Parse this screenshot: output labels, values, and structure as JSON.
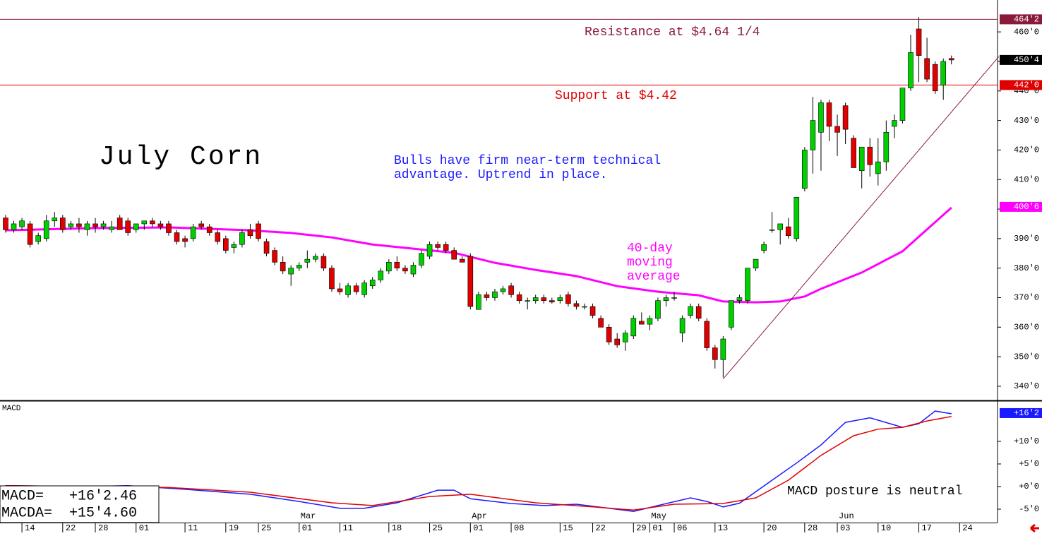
{
  "chart_data": {
    "type": "candlestick",
    "title": "July Corn",
    "up_color": "#00d000",
    "down_color": "#e00000",
    "xlim": [
      -0.69,
      121.65
    ],
    "ylim": [
      335.2,
      470.8
    ],
    "open": [
      397,
      393,
      394,
      395,
      389,
      390,
      396,
      397,
      394,
      395,
      393,
      395,
      394,
      393,
      397,
      396,
      393,
      395,
      396,
      395,
      395,
      392,
      390,
      390,
      395,
      394,
      392,
      390,
      387,
      388,
      393,
      395,
      389,
      386,
      382,
      378,
      380,
      382,
      383,
      384,
      380,
      373,
      371,
      374,
      371,
      374,
      376,
      379,
      382,
      380,
      378,
      381,
      384,
      388,
      388,
      386,
      383,
      384,
      366,
      371,
      370,
      372,
      374,
      371,
      369,
      369,
      370,
      369,
      369,
      371,
      368,
      367,
      367,
      363,
      360,
      356,
      355,
      357,
      362,
      361,
      363,
      369,
      370,
      358,
      364,
      367,
      362,
      353,
      349,
      360,
      369,
      369,
      380,
      386,
      393,
      393,
      394,
      390,
      407,
      420,
      426,
      436,
      428,
      435,
      424,
      413,
      421,
      412,
      416,
      428,
      430,
      441,
      461,
      451,
      449,
      442,
      451
    ],
    "high": [
      398,
      396,
      397,
      396,
      392,
      398,
      399,
      398,
      396,
      397,
      396,
      397,
      396,
      396,
      398,
      397,
      395,
      396,
      397,
      396,
      396,
      393,
      391,
      395,
      396,
      395,
      393,
      391,
      389,
      393,
      395,
      396,
      390,
      387,
      384,
      381,
      382,
      386,
      385,
      385,
      381,
      375,
      375,
      375,
      376,
      377,
      380,
      383,
      384,
      381,
      382,
      386,
      389,
      389,
      389,
      387,
      384,
      385,
      372,
      372,
      373,
      374,
      375,
      372,
      370,
      371,
      371,
      370,
      371,
      372,
      369,
      368,
      368,
      364,
      361,
      358,
      359,
      364,
      365,
      364,
      370,
      371,
      372,
      364,
      368,
      368,
      363,
      354,
      357,
      369,
      371,
      380,
      383,
      389,
      399,
      395,
      397,
      404,
      421,
      438,
      437,
      437,
      432,
      436,
      425,
      421,
      424,
      424,
      430,
      432,
      441,
      459,
      465,
      458,
      450,
      451,
      452
    ],
    "low": [
      392,
      392,
      393,
      387,
      388,
      389,
      394,
      392,
      393,
      392,
      391,
      392,
      393,
      392,
      393,
      391,
      392,
      393,
      394,
      393,
      391,
      388,
      387,
      389,
      393,
      391,
      388,
      385,
      385,
      387,
      390,
      389,
      384,
      381,
      378,
      374,
      379,
      380,
      382,
      379,
      372,
      371,
      370,
      371,
      370,
      373,
      375,
      378,
      379,
      378,
      377,
      380,
      383,
      386,
      385,
      383,
      382,
      366,
      366,
      369,
      369,
      371,
      370,
      368,
      366,
      368,
      368,
      368,
      368,
      367,
      366,
      366,
      363,
      360,
      354,
      353,
      352,
      356,
      361,
      359,
      362,
      367,
      369,
      355,
      363,
      362,
      352,
      346,
      343,
      359,
      368,
      368,
      379,
      385,
      392,
      388,
      390,
      389,
      406,
      412,
      413,
      423,
      418,
      422,
      414,
      407,
      411,
      408,
      413,
      424,
      429,
      440,
      443,
      443,
      439,
      437,
      449
    ],
    "close": [
      393,
      395,
      396,
      388,
      391,
      396,
      397,
      393,
      395,
      394,
      395,
      394,
      395,
      394,
      393,
      392,
      395,
      396,
      395,
      394,
      392,
      389,
      389,
      394,
      394,
      392,
      389,
      386,
      388,
      392,
      391,
      390,
      385,
      382,
      379,
      380,
      381,
      383,
      384,
      380,
      373,
      372,
      374,
      372,
      375,
      376,
      379,
      382,
      380,
      379,
      381,
      385,
      388,
      387,
      386,
      383,
      382,
      367,
      371,
      370,
      372,
      373,
      371,
      369,
      369,
      370,
      369,
      368.5,
      370,
      368,
      367,
      367,
      364,
      360,
      355,
      354,
      358,
      363,
      361,
      363,
      369,
      370,
      370,
      363,
      367,
      363,
      353,
      349,
      356,
      369,
      370,
      380,
      383,
      388,
      393,
      395,
      391,
      404,
      420,
      430,
      436,
      428,
      426,
      427,
      414,
      421,
      415,
      416,
      426,
      430,
      441,
      453,
      452,
      444,
      440,
      450,
      450.5
    ],
    "xticks": [
      {
        "value": 2,
        "label": "14"
      },
      {
        "value": 7,
        "label": "22"
      },
      {
        "value": 11,
        "label": "28"
      },
      {
        "value": 16,
        "label": "01"
      },
      {
        "value": 22,
        "label": "11"
      },
      {
        "value": 27,
        "label": "19"
      },
      {
        "value": 31,
        "label": "25"
      },
      {
        "value": 36,
        "label": "01"
      },
      {
        "value": 41,
        "label": "11"
      },
      {
        "value": 47,
        "label": "18"
      },
      {
        "value": 52,
        "label": "25"
      },
      {
        "value": 57,
        "label": "01"
      },
      {
        "value": 62,
        "label": "08"
      },
      {
        "value": 68,
        "label": "15"
      },
      {
        "value": 72,
        "label": "22"
      },
      {
        "value": 77,
        "label": "29"
      },
      {
        "value": 79,
        "label": "01"
      },
      {
        "value": 82,
        "label": "06"
      },
      {
        "value": 87,
        "label": "13"
      },
      {
        "value": 93,
        "label": "20"
      },
      {
        "value": 98,
        "label": "28"
      },
      {
        "value": 102,
        "label": "03"
      },
      {
        "value": 107,
        "label": "10"
      },
      {
        "value": 112,
        "label": "17"
      },
      {
        "value": 117,
        "label": "24"
      }
    ],
    "month_labels": [
      {
        "value": 36,
        "label": "Mar"
      },
      {
        "value": 57,
        "label": "Apr"
      },
      {
        "value": 79,
        "label": "May"
      },
      {
        "value": 102,
        "label": "Jun"
      }
    ],
    "yticks": [
      {
        "value": 340,
        "label": "340'0"
      },
      {
        "value": 350,
        "label": "350'0"
      },
      {
        "value": 360,
        "label": "360'0"
      },
      {
        "value": 370,
        "label": "370'0"
      },
      {
        "value": 380,
        "label": "380'0"
      },
      {
        "value": 390,
        "label": "390'0"
      },
      {
        "value": 400,
        "label": "400'0"
      },
      {
        "value": 410,
        "label": "410'0"
      },
      {
        "value": 420,
        "label": "420'0"
      },
      {
        "value": 430,
        "label": "430'0"
      },
      {
        "value": 440,
        "label": "440'0"
      },
      {
        "value": 450,
        "label": "450'0"
      },
      {
        "value": 460,
        "label": "460'0"
      }
    ],
    "levels": [
      {
        "name": "Resistance at $4.64 1/4",
        "value": 464.25,
        "color": "#8b1a3a"
      },
      {
        "name": "Support at $4.42",
        "value": 442,
        "color": "#e00000"
      }
    ],
    "price_tags": [
      {
        "value": 464.25,
        "label": "464'2",
        "color": "#8b1a3a"
      },
      {
        "value": 450.5,
        "label": "450'4",
        "color": "#000000"
      },
      {
        "value": 442,
        "label": "442'0",
        "color": "#e00000"
      },
      {
        "value": 400.75,
        "label": "400'6",
        "color": "#ff00ff"
      }
    ],
    "moving_average": {
      "name": "40-day moving average",
      "lines": [
        "40-day",
        "moving",
        "average"
      ],
      "color": "#ff00ff",
      "x": [
        0,
        10,
        20,
        30,
        35,
        40,
        45,
        50,
        55,
        60,
        65,
        70,
        75,
        80,
        85,
        88,
        92,
        95,
        98,
        100,
        105,
        110,
        113,
        116
      ],
      "values": [
        392.8,
        393.5,
        393.8,
        392.8,
        391.9,
        390.4,
        388,
        386.6,
        385.2,
        381.8,
        379.4,
        377.3,
        373.9,
        372,
        370.8,
        368.7,
        368.4,
        368.7,
        370.4,
        373,
        378.5,
        385.7,
        393.1,
        400.5
      ]
    },
    "trendline": {
      "color": "#8b1a3a",
      "x": [
        88,
        121.8
      ],
      "values": [
        342.5,
        451.6
      ]
    },
    "annotations": [
      {
        "lines": [
          "Bulls have firm near-term technical",
          "advantage. Uptrend in place."
        ],
        "color": "#1a1aff"
      }
    ],
    "macd": {
      "label": "MACD",
      "ylim": [
        -7.97,
        18.9
      ],
      "yticks": [
        {
          "value": -5,
          "label": "-5'0"
        },
        {
          "value": 0,
          "label": "+0'0"
        },
        {
          "value": 5,
          "label": "+5'0"
        },
        {
          "value": 10,
          "label": "+10'0"
        }
      ],
      "readouts": [
        "MACD=   +16'2.46",
        "MACDA=  +15'4.60"
      ],
      "note": "MACD posture is neutral",
      "tags": [
        {
          "value": 16.25,
          "label": "+16'2",
          "color": "#1a1aff"
        }
      ],
      "series": [
        {
          "color": "#1a1aff",
          "x": [
            0,
            10,
            15,
            22,
            30,
            36,
            41,
            44,
            48,
            53,
            55,
            57,
            62,
            66,
            70,
            74,
            77,
            80,
            84,
            86,
            88,
            90,
            94,
            97,
            100,
            103,
            106,
            110,
            112,
            114,
            116
          ],
          "values": [
            0.2,
            0,
            0.2,
            -0.6,
            -1.7,
            -3.3,
            -4.8,
            -4.8,
            -3.6,
            -0.8,
            -0.8,
            -2.7,
            -3.75,
            -4.2,
            -3.9,
            -4.8,
            -5.5,
            -4.2,
            -2.5,
            -3.3,
            -4.5,
            -3.7,
            1.4,
            5.2,
            9.2,
            14.2,
            15.2,
            13.1,
            13.9,
            16.7,
            16.1
          ]
        },
        {
          "color": "#e00000",
          "x": [
            0,
            20,
            30,
            40,
            45,
            52,
            57,
            65,
            72,
            77,
            82,
            88,
            92,
            96,
            100,
            104,
            107,
            110,
            113,
            116
          ],
          "values": [
            0.2,
            -0.2,
            -1.25,
            -3.6,
            -4.2,
            -2.2,
            -1.7,
            -3.6,
            -4.5,
            -5.2,
            -3.9,
            -3.75,
            -2.5,
            1.4,
            6.9,
            11.25,
            12.7,
            13.1,
            14.5,
            15.5
          ]
        }
      ]
    }
  }
}
